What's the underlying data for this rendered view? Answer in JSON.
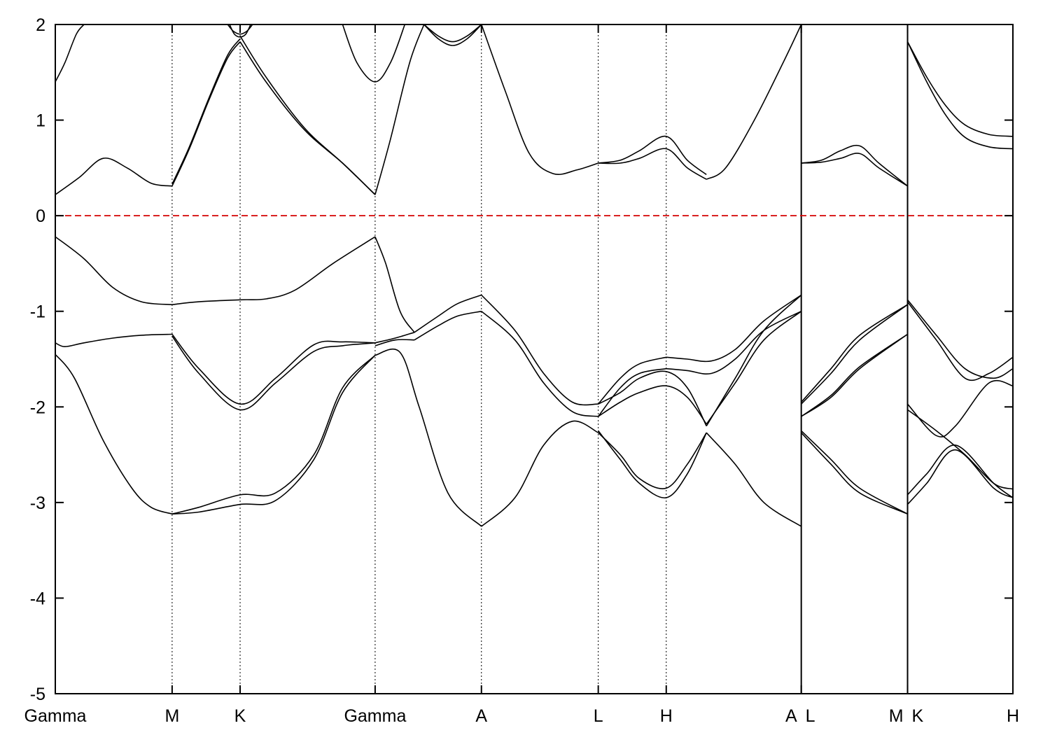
{
  "chart_data": {
    "type": "line",
    "title": "",
    "xlabel": "",
    "ylabel": "",
    "ylim": [
      -5,
      2
    ],
    "xlim": [
      0,
      10
    ],
    "yticks": [
      2,
      1,
      0,
      -1,
      -2,
      -3,
      -4,
      -5
    ],
    "grid": false,
    "legend": "none",
    "fermi_level": 0,
    "fermi_color": "#d40000",
    "line_color": "#000000",
    "kpoints": [
      {
        "label": "Gamma",
        "x": 0.0,
        "line": "none",
        "anchor": "middle"
      },
      {
        "label": "M",
        "x": 1.22,
        "line": "dotted",
        "anchor": "middle"
      },
      {
        "label": "K",
        "x": 1.93,
        "line": "dotted",
        "anchor": "middle"
      },
      {
        "label": "Gamma",
        "x": 3.34,
        "line": "dotted",
        "anchor": "middle"
      },
      {
        "label": "A",
        "x": 4.45,
        "line": "dotted",
        "anchor": "middle"
      },
      {
        "label": "L",
        "x": 5.67,
        "line": "dotted",
        "anchor": "middle"
      },
      {
        "label": "H",
        "x": 6.38,
        "line": "dotted",
        "anchor": "middle"
      },
      {
        "label": "A",
        "x": 7.79,
        "line": "solid",
        "anchor": "end"
      },
      {
        "label": "L",
        "x": 7.79,
        "line": "none",
        "anchor": "start"
      },
      {
        "label": "M",
        "x": 8.9,
        "line": "solid",
        "anchor": "end"
      },
      {
        "label": "K",
        "x": 8.9,
        "line": "none",
        "anchor": "start"
      },
      {
        "label": "H",
        "x": 10.0,
        "line": "none",
        "anchor": "middle"
      }
    ],
    "series": [
      {
        "x": [
          0,
          0.25,
          0.5,
          0.75,
          1.0,
          1.22
        ],
        "y": [
          0.22,
          0.4,
          0.6,
          0.5,
          0.34,
          0.31
        ]
      },
      {
        "x": [
          1.22,
          1.4,
          1.6,
          1.8,
          1.93
        ],
        "y": [
          0.31,
          0.7,
          1.2,
          1.65,
          1.82
        ]
      },
      {
        "x": [
          1.22,
          1.4,
          1.6,
          1.8,
          1.93
        ],
        "y": [
          0.33,
          0.72,
          1.22,
          1.68,
          1.85
        ]
      },
      {
        "x": [
          1.93,
          2.2,
          2.6,
          3.0,
          3.34
        ],
        "y": [
          1.82,
          1.4,
          0.9,
          0.55,
          0.22
        ]
      },
      {
        "x": [
          1.93,
          2.2,
          2.6,
          3.0,
          3.34
        ],
        "y": [
          1.88,
          1.45,
          0.92,
          0.55,
          0.22
        ]
      },
      {
        "x": [
          3.34,
          3.5,
          3.7,
          3.85
        ],
        "y": [
          0.22,
          0.8,
          1.6,
          2.0
        ]
      },
      {
        "x": [
          0,
          0.1,
          0.22,
          0.3
        ],
        "y": [
          1.4,
          1.6,
          1.9,
          2.0
        ]
      },
      {
        "x": [
          3.0,
          3.15,
          3.34,
          3.5,
          3.65
        ],
        "y": [
          2.0,
          1.6,
          1.4,
          1.6,
          2.0
        ]
      },
      {
        "x": [
          1.8,
          1.86,
          1.93,
          2.0,
          2.06
        ],
        "y": [
          2.0,
          1.93,
          1.9,
          1.93,
          2.0
        ]
      },
      {
        "x": [
          1.82,
          1.87,
          1.93,
          1.99,
          2.04
        ],
        "y": [
          2.0,
          1.9,
          1.87,
          1.9,
          2.0
        ]
      },
      {
        "x": [
          3.85,
          4.0,
          4.15,
          4.3,
          4.45
        ],
        "y": [
          2.0,
          1.85,
          1.78,
          1.85,
          2.0
        ]
      },
      {
        "x": [
          3.85,
          4.0,
          4.15,
          4.3,
          4.45
        ],
        "y": [
          2.0,
          1.88,
          1.82,
          1.88,
          2.0
        ]
      },
      {
        "x": [
          4.45,
          4.7,
          4.95,
          5.2,
          5.45,
          5.67
        ],
        "y": [
          2.0,
          1.3,
          0.65,
          0.44,
          0.48,
          0.55
        ]
      },
      {
        "x": [
          5.67,
          5.9,
          6.1,
          6.38,
          6.6,
          6.8
        ],
        "y": [
          0.55,
          0.58,
          0.68,
          0.83,
          0.58,
          0.43
        ]
      },
      {
        "x": [
          5.67,
          5.9,
          6.1,
          6.38,
          6.6,
          6.8
        ],
        "y": [
          0.55,
          0.55,
          0.6,
          0.7,
          0.5,
          0.38
        ]
      },
      {
        "x": [
          6.8,
          7.0,
          7.3,
          7.6,
          7.79
        ],
        "y": [
          0.38,
          0.5,
          1.0,
          1.6,
          2.0
        ]
      },
      {
        "x": [
          7.79,
          8.0,
          8.2,
          8.4,
          8.6,
          8.9
        ],
        "y": [
          0.55,
          0.58,
          0.68,
          0.73,
          0.55,
          0.31
        ]
      },
      {
        "x": [
          7.79,
          8.0,
          8.2,
          8.4,
          8.6,
          8.9
        ],
        "y": [
          0.55,
          0.56,
          0.6,
          0.65,
          0.5,
          0.31
        ]
      },
      {
        "x": [
          8.9,
          9.1,
          9.3,
          9.5,
          9.75,
          10
        ],
        "y": [
          1.82,
          1.45,
          1.15,
          0.95,
          0.85,
          0.83
        ]
      },
      {
        "x": [
          8.9,
          9.1,
          9.3,
          9.5,
          9.75,
          10
        ],
        "y": [
          1.82,
          1.4,
          1.05,
          0.82,
          0.72,
          0.7
        ]
      },
      {
        "x": [
          0,
          0.3,
          0.6,
          0.9,
          1.22
        ],
        "y": [
          -0.22,
          -0.45,
          -0.75,
          -0.9,
          -0.93
        ]
      },
      {
        "x": [
          1.22,
          1.5,
          1.93,
          2.2,
          2.5,
          2.9,
          3.34
        ],
        "y": [
          -0.93,
          -0.9,
          -0.88,
          -0.87,
          -0.78,
          -0.5,
          -0.22
        ]
      },
      {
        "x": [
          3.34,
          3.45,
          3.6,
          3.75
        ],
        "y": [
          -0.22,
          -0.5,
          -1.0,
          -1.22
        ]
      },
      {
        "x": [
          3.75,
          4.0,
          4.2,
          4.45
        ],
        "y": [
          -1.22,
          -1.05,
          -0.92,
          -0.83
        ]
      },
      {
        "x": [
          4.45,
          4.8,
          5.1,
          5.4,
          5.67
        ],
        "y": [
          -0.83,
          -1.2,
          -1.65,
          -1.95,
          -1.97
        ]
      },
      {
        "x": [
          3.75,
          4.0,
          4.2,
          4.45
        ],
        "y": [
          -1.3,
          -1.15,
          -1.05,
          -1.0
        ]
      },
      {
        "x": [
          4.45,
          4.8,
          5.1,
          5.4,
          5.67
        ],
        "y": [
          -1.0,
          -1.3,
          -1.75,
          -2.05,
          -2.1
        ]
      },
      {
        "x": [
          0,
          0.1,
          0.3,
          0.6,
          0.9,
          1.22
        ],
        "y": [
          -1.33,
          -1.37,
          -1.33,
          -1.28,
          -1.25,
          -1.24
        ]
      },
      {
        "x": [
          1.22,
          1.5,
          1.93,
          2.3,
          2.7,
          3.0,
          3.34
        ],
        "y": [
          -1.24,
          -1.6,
          -1.97,
          -1.7,
          -1.35,
          -1.32,
          -1.33
        ]
      },
      {
        "x": [
          1.22,
          1.5,
          1.93,
          2.3,
          2.7,
          3.0,
          3.34
        ],
        "y": [
          -1.26,
          -1.65,
          -2.03,
          -1.75,
          -1.42,
          -1.36,
          -1.33
        ]
      },
      {
        "x": [
          3.34,
          3.55,
          3.75
        ],
        "y": [
          -1.33,
          -1.28,
          -1.22
        ]
      },
      {
        "x": [
          3.34,
          3.55,
          3.75
        ],
        "y": [
          -1.36,
          -1.3,
          -1.3
        ]
      },
      {
        "x": [
          0,
          0.2,
          0.5,
          0.8,
          1.0,
          1.22
        ],
        "y": [
          -1.45,
          -1.7,
          -2.35,
          -2.85,
          -3.05,
          -3.12
        ]
      },
      {
        "x": [
          1.22,
          1.5,
          1.93,
          2.3,
          2.7,
          3.0,
          3.34
        ],
        "y": [
          -3.12,
          -3.05,
          -2.92,
          -2.9,
          -2.5,
          -1.8,
          -1.46
        ]
      },
      {
        "x": [
          1.22,
          1.5,
          1.93,
          2.3,
          2.7,
          3.0,
          3.34
        ],
        "y": [
          -3.12,
          -3.1,
          -3.02,
          -2.98,
          -2.55,
          -1.85,
          -1.46
        ]
      },
      {
        "x": [
          3.34,
          3.6,
          3.8,
          4.1,
          4.45
        ],
        "y": [
          -1.46,
          -1.43,
          -2.0,
          -2.9,
          -3.25
        ]
      },
      {
        "x": [
          4.45,
          4.8,
          5.1,
          5.4,
          5.67
        ],
        "y": [
          -3.25,
          -2.95,
          -2.4,
          -2.15,
          -2.27
        ]
      },
      {
        "x": [
          5.67,
          5.9,
          6.1,
          6.38
        ],
        "y": [
          -1.97,
          -1.7,
          -1.55,
          -1.48
        ]
      },
      {
        "x": [
          6.38,
          6.6,
          6.85,
          7.1,
          7.4,
          7.79
        ],
        "y": [
          -1.48,
          -1.5,
          -1.52,
          -1.4,
          -1.1,
          -0.83
        ]
      },
      {
        "x": [
          5.67,
          5.9,
          6.1,
          6.38
        ],
        "y": [
          -2.1,
          -1.8,
          -1.65,
          -1.6
        ]
      },
      {
        "x": [
          6.38,
          6.6,
          6.85,
          7.1,
          7.4,
          7.79
        ],
        "y": [
          -1.6,
          -1.62,
          -1.65,
          -1.5,
          -1.2,
          -1.0
        ]
      },
      {
        "x": [
          5.67,
          5.9,
          6.1,
          6.38,
          6.6,
          6.8
        ],
        "y": [
          -1.97,
          -1.85,
          -1.7,
          -1.63,
          -1.8,
          -2.2
        ]
      },
      {
        "x": [
          5.67,
          5.9,
          6.1,
          6.38,
          6.6,
          6.8
        ],
        "y": [
          -2.1,
          -1.95,
          -1.85,
          -1.78,
          -1.9,
          -2.18
        ]
      },
      {
        "x": [
          6.8,
          7.1,
          7.4,
          7.79
        ],
        "y": [
          -2.2,
          -1.7,
          -1.2,
          -0.83
        ]
      },
      {
        "x": [
          6.8,
          7.1,
          7.4,
          7.79
        ],
        "y": [
          -2.18,
          -1.75,
          -1.3,
          -1.0
        ]
      },
      {
        "x": [
          5.67,
          5.9,
          6.1,
          6.38,
          6.6,
          6.8
        ],
        "y": [
          -2.27,
          -2.5,
          -2.75,
          -2.85,
          -2.6,
          -2.27
        ]
      },
      {
        "x": [
          5.67,
          5.9,
          6.1,
          6.38,
          6.6,
          6.8
        ],
        "y": [
          -2.25,
          -2.55,
          -2.8,
          -2.95,
          -2.7,
          -2.27
        ]
      },
      {
        "x": [
          6.8,
          7.1,
          7.4,
          7.79
        ],
        "y": [
          -2.27,
          -2.6,
          -3.0,
          -3.25
        ]
      },
      {
        "x": [
          7.79,
          8.1,
          8.4,
          8.9
        ],
        "y": [
          -1.97,
          -1.65,
          -1.3,
          -0.93
        ]
      },
      {
        "x": [
          7.79,
          8.1,
          8.4,
          8.9
        ],
        "y": [
          -1.95,
          -1.6,
          -1.25,
          -0.93
        ]
      },
      {
        "x": [
          7.79,
          8.1,
          8.4,
          8.9
        ],
        "y": [
          -2.1,
          -1.9,
          -1.6,
          -1.24
        ]
      },
      {
        "x": [
          7.79,
          8.1,
          8.4,
          8.9
        ],
        "y": [
          -2.1,
          -1.88,
          -1.58,
          -1.24
        ]
      },
      {
        "x": [
          7.79,
          8.1,
          8.4,
          8.9
        ],
        "y": [
          -2.27,
          -2.6,
          -2.9,
          -3.12
        ]
      },
      {
        "x": [
          7.79,
          8.1,
          8.4,
          8.9
        ],
        "y": [
          -2.25,
          -2.55,
          -2.85,
          -3.12
        ]
      },
      {
        "x": [
          8.9,
          9.2,
          9.5,
          9.8,
          10
        ],
        "y": [
          -0.88,
          -1.25,
          -1.6,
          -1.7,
          -1.6
        ]
      },
      {
        "x": [
          8.9,
          9.2,
          9.5,
          9.75,
          10
        ],
        "y": [
          -0.9,
          -1.3,
          -1.7,
          -1.65,
          -1.48
        ]
      },
      {
        "x": [
          8.9,
          9.2,
          9.4,
          9.75,
          10
        ],
        "y": [
          -1.97,
          -2.3,
          -2.2,
          -1.75,
          -1.78
        ]
      },
      {
        "x": [
          8.9,
          9.2,
          9.5,
          9.8,
          10
        ],
        "y": [
          -2.03,
          -2.25,
          -2.5,
          -2.8,
          -2.86
        ]
      },
      {
        "x": [
          8.9,
          9.1,
          9.4,
          9.8,
          10
        ],
        "y": [
          -2.92,
          -2.7,
          -2.4,
          -2.8,
          -2.95
        ]
      },
      {
        "x": [
          8.9,
          9.1,
          9.4,
          9.8,
          10
        ],
        "y": [
          -3.02,
          -2.8,
          -2.45,
          -2.85,
          -2.95
        ]
      }
    ]
  }
}
